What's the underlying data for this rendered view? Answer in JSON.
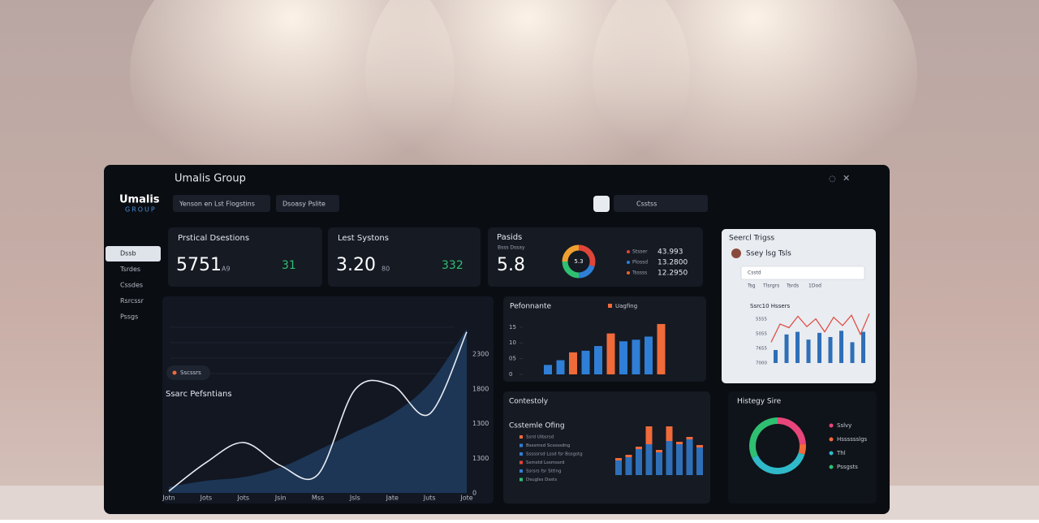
{
  "header": {
    "title": "Umalis Group",
    "logo": "Umalis",
    "logo_sub": "GROUP"
  },
  "filters": [
    "Yenson en Lst Flogstins",
    "Dsoasy Pslite"
  ],
  "search": "Csstss",
  "sidebar": [
    "Dssb",
    "Tsrdes",
    "Cssdes",
    "Rsrcssr",
    "Pssgs"
  ],
  "kpis": [
    {
      "title": "Prstical Dsestions",
      "value": "5751",
      "unit": "A9",
      "delta": "31"
    },
    {
      "title": "Lest Systons",
      "value": "3.20",
      "unit": "80",
      "delta": "332"
    }
  ],
  "kpi3": {
    "title": "Pasids",
    "sub": "Bsss Dssay",
    "value": "5.8",
    "donut_label": "5.3",
    "donut": {
      "values": [
        30,
        20,
        25,
        25
      ],
      "colors": [
        "#e0453a",
        "#2f7fd6",
        "#2fbf71",
        "#f0a030"
      ]
    },
    "legend": [
      {
        "name": "Stsser",
        "value": "43.993",
        "color": "#e0453a"
      },
      {
        "name": "Plossd",
        "value": "13.2800",
        "color": "#2f7fd6"
      },
      {
        "name": "Tsssss",
        "value": "12.2950",
        "color": "#f06030"
      }
    ]
  },
  "trend_chart": {
    "type": "area",
    "legend": "Sscssrs",
    "label": "Ssarc Pefsntians",
    "categories": [
      "Jotn",
      "Jots",
      "Jots",
      "Jsin",
      "Mss",
      "Jsls",
      "Jate",
      "Juts",
      "Jote"
    ],
    "ytick_labels": [
      "2300",
      "1800",
      "1300",
      "1300",
      "0"
    ],
    "ylim": [
      0,
      2900
    ],
    "series": [
      {
        "color": "#1f3a5c",
        "values": [
          100,
          200,
          260,
          420,
          700,
          1000,
          1300,
          1800,
          2700
        ]
      },
      {
        "color": "#e8ecf2",
        "values": [
          30,
          500,
          830,
          450,
          300,
          1700,
          1770,
          1300,
          2650
        ]
      }
    ]
  },
  "performance": {
    "type": "bar",
    "title": "Pefonnante",
    "legend": "Uagfing",
    "legend_color": "#f06a3a",
    "values": [
      3,
      4.5,
      7,
      7.5,
      9,
      13,
      10.5,
      11,
      12,
      16
    ],
    "colors": [
      "#2f7fd6",
      "#2f7fd6",
      "#f06a3a",
      "#2f7fd6",
      "#2f7fd6",
      "#f06a3a",
      "#2f7fd6",
      "#2f7fd6",
      "#2f7fd6",
      "#f06a3a"
    ],
    "ylim": [
      0,
      16.5
    ],
    "yticks": [
      0,
      {
        "value": 5,
        "label": "05"
      },
      10,
      15
    ]
  },
  "consistency": {
    "type": "bar",
    "title": "Contestoly",
    "subtitle": "Csstemle Ofing",
    "legend_items": [
      {
        "name": "Ssrd Ulbsrsd",
        "color": "#f06a3a"
      },
      {
        "name": "Bsssmsd Scssssdng",
        "color": "#2f7fd6"
      },
      {
        "name": "Sssssrsd Lssd fsr Bssgstg",
        "color": "#2f7fd6"
      },
      {
        "name": "Ssmstd Lssmssrd",
        "color": "#e0453a"
      },
      {
        "name": "Ssrsrs fsr Sttlng",
        "color": "#2f7fd6"
      },
      {
        "name": "Dsuglss Dssts",
        "color": "#2fbf71"
      }
    ],
    "ylim": [
      0,
      60
    ],
    "series": [
      {
        "color": "#2f6fb8",
        "values": [
          18,
          22,
          32,
          38,
          28,
          42,
          38,
          44,
          34
        ]
      },
      {
        "color": "#f06a3a",
        "values": [
          3,
          3,
          3,
          22,
          3,
          18,
          3,
          3,
          3
        ]
      }
    ]
  },
  "search_panel": {
    "title": "Seercl Trigss",
    "subtitle": "Ssey lsg Tsls",
    "select": "Csstd",
    "tabs": [
      "Tsg",
      "Tlsrgrs",
      "Tsrds",
      "1Dod"
    ],
    "chart": {
      "title": "Ssrc10 Hssers",
      "ytick_labels": [
        "5555",
        "5055",
        "7655",
        "7000"
      ],
      "ylim": [
        0,
        100
      ],
      "bars": {
        "color": "#2f6fb8",
        "values": [
          25,
          55,
          60,
          45,
          58,
          50,
          62,
          40,
          60
        ]
      },
      "line": {
        "color": "#e0453a",
        "values": [
          40,
          75,
          68,
          90,
          70,
          85,
          60,
          88,
          72,
          92,
          55,
          95
        ]
      }
    }
  },
  "history": {
    "type": "pie",
    "title": "Histegy Sire",
    "categories": [
      "Sslvy",
      "Hsssssslgs",
      "Thl",
      "Pssgsts"
    ],
    "values": [
      24,
      6,
      38,
      32
    ],
    "colors": [
      "#e8457a",
      "#f06a3a",
      "#2fb9c9",
      "#2fbf71"
    ]
  }
}
